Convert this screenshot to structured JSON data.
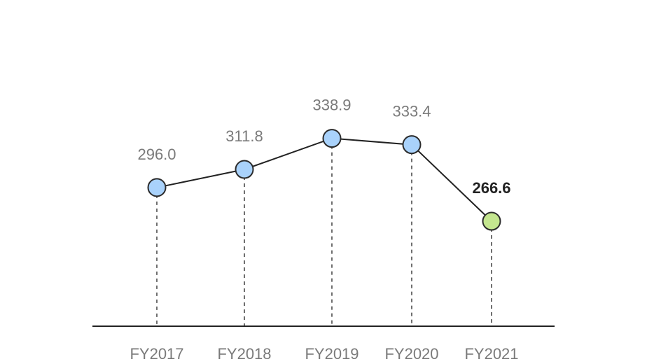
{
  "chart_data": {
    "type": "line",
    "categories": [
      "FY2017",
      "FY2018",
      "FY2019",
      "FY2020",
      "FY2021"
    ],
    "series": [
      {
        "values": [
          296.0,
          311.8,
          338.9,
          333.4,
          266.6
        ],
        "value_labels": [
          "296.0",
          "311.8",
          "338.9",
          "333.4",
          "266.6"
        ]
      }
    ],
    "highlight_index": 4,
    "markers": true,
    "drop_lines": "dashed",
    "grid": false,
    "ylim": [
      175,
      368
    ],
    "colors": {
      "line": "#222222",
      "marker_fill": "#a9d2fb",
      "marker_highlight_fill": "#c4e68f",
      "marker_stroke": "#2b2b2b",
      "drop_line": "#6e6e6e",
      "value_label": "#7a7a7a",
      "value_label_highlight": "#222222",
      "axis": "#222222"
    }
  }
}
